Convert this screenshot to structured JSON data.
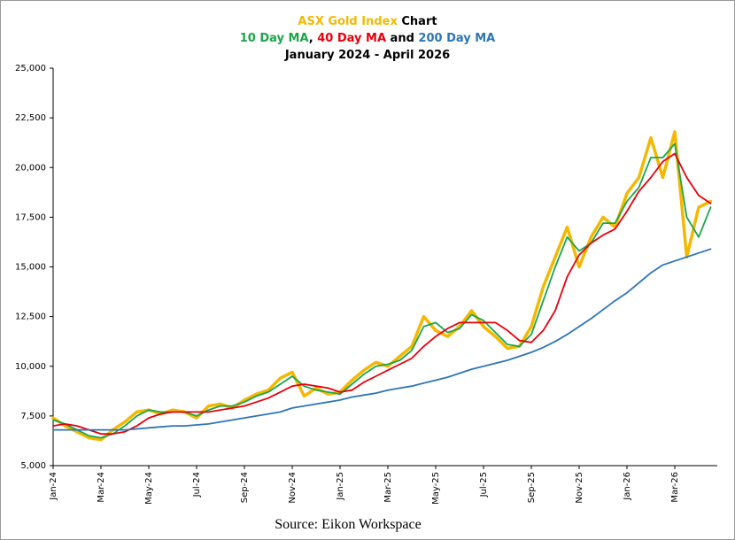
{
  "chart_data": {
    "type": "line",
    "title_lines": [
      [
        {
          "text": "ASX Gold Index",
          "color": "#f5b800"
        },
        {
          "text": " Chart",
          "color": "#000000"
        }
      ],
      [
        {
          "text": "10 Day MA",
          "color": "#1aa64a"
        },
        {
          "text": ", ",
          "color": "#000000"
        },
        {
          "text": "40 Day MA",
          "color": "#e8000b"
        },
        {
          "text": " and ",
          "color": "#000000"
        },
        {
          "text": "200 Day MA",
          "color": "#2e75b6"
        }
      ],
      [
        {
          "text": "January 2024 - April 2026",
          "color": "#000000"
        }
      ]
    ],
    "source": "Source: Eikon Workspace",
    "categories": [
      "Jan-24",
      null,
      null,
      null,
      "Mar-24",
      null,
      null,
      null,
      "May-24",
      null,
      null,
      null,
      "Jul-24",
      null,
      null,
      null,
      "Sep-24",
      null,
      null,
      null,
      "Nov-24",
      null,
      null,
      null,
      "Jan-25",
      null,
      null,
      null,
      "Mar-25",
      null,
      null,
      null,
      "May-25",
      null,
      null,
      null,
      "Jul-25",
      null,
      null,
      null,
      "Sep-25",
      null,
      null,
      null,
      "Nov-25",
      null,
      null,
      null,
      "Jan-26",
      null,
      null,
      null,
      "Mar-26",
      null,
      null,
      null
    ],
    "series": [
      {
        "name": "ASX Gold Index",
        "color": "#f5b800",
        "width": 3.5,
        "values": [
          7400,
          7000,
          6700,
          6400,
          6300,
          6800,
          7200,
          7700,
          7800,
          7600,
          7800,
          7700,
          7400,
          8000,
          8100,
          7900,
          8300,
          8600,
          8800,
          9400,
          9700,
          8500,
          8900,
          8600,
          8700,
          9300,
          9800,
          10200,
          10000,
          10500,
          11000,
          12500,
          11800,
          11500,
          12000,
          12800,
          12000,
          11500,
          10900,
          11000,
          12000,
          14000,
          15500,
          17000,
          15000,
          16500,
          17500,
          17000,
          18700,
          19500,
          21500,
          19500,
          21800,
          15500,
          18000,
          18300
        ]
      },
      {
        "name": "10 Day MA",
        "color": "#1aa64a",
        "width": 1.8,
        "values": [
          7300,
          7100,
          6800,
          6500,
          6400,
          6600,
          7000,
          7500,
          7800,
          7700,
          7700,
          7700,
          7500,
          7800,
          8000,
          8000,
          8200,
          8500,
          8700,
          9100,
          9500,
          9000,
          8800,
          8700,
          8600,
          9100,
          9600,
          10000,
          10100,
          10300,
          10800,
          12000,
          12200,
          11700,
          11900,
          12600,
          12300,
          11700,
          11100,
          11000,
          11600,
          13300,
          15000,
          16500,
          15800,
          16200,
          17200,
          17200,
          18300,
          19000,
          20500,
          20500,
          21200,
          17500,
          16500,
          18000
        ]
      },
      {
        "name": "40 Day MA",
        "color": "#e8000b",
        "width": 1.8,
        "values": [
          7000,
          7100,
          7000,
          6800,
          6600,
          6600,
          6700,
          7000,
          7400,
          7600,
          7700,
          7700,
          7700,
          7700,
          7800,
          7900,
          8000,
          8200,
          8400,
          8700,
          9000,
          9100,
          9000,
          8900,
          8700,
          8800,
          9200,
          9500,
          9800,
          10100,
          10400,
          11000,
          11500,
          11900,
          12200,
          12200,
          12200,
          12200,
          11800,
          11300,
          11200,
          11800,
          12800,
          14500,
          15600,
          16200,
          16600,
          16900,
          17800,
          18800,
          19500,
          20300,
          20700,
          19500,
          18600,
          18200
        ]
      },
      {
        "name": "200 Day MA",
        "color": "#2e75b6",
        "width": 1.8,
        "values": [
          6800,
          6800,
          6800,
          6800,
          6800,
          6800,
          6800,
          6850,
          6900,
          6950,
          7000,
          7000,
          7050,
          7100,
          7200,
          7300,
          7400,
          7500,
          7600,
          7700,
          7900,
          8000,
          8100,
          8200,
          8300,
          8450,
          8550,
          8650,
          8800,
          8900,
          9000,
          9150,
          9300,
          9450,
          9650,
          9850,
          10000,
          10150,
          10300,
          10500,
          10700,
          10950,
          11250,
          11600,
          12000,
          12400,
          12850,
          13300,
          13700,
          14200,
          14700,
          15100,
          15300,
          15500,
          15700,
          15900
        ]
      }
    ],
    "ylim": [
      5000,
      25000
    ],
    "yticks": [
      {
        "value": 5000,
        "label": "5,000"
      },
      {
        "value": 7500,
        "label": "7,500"
      },
      {
        "value": 10000,
        "label": "10,000"
      },
      {
        "value": 12500,
        "label": "12,500"
      },
      {
        "value": 15000,
        "label": "15,000"
      },
      {
        "value": 17500,
        "label": "17,500"
      },
      {
        "value": 20000,
        "label": "20,000"
      },
      {
        "value": 22500,
        "label": "22,500"
      },
      {
        "value": 25000,
        "label": "25,000"
      }
    ],
    "grid": false
  }
}
